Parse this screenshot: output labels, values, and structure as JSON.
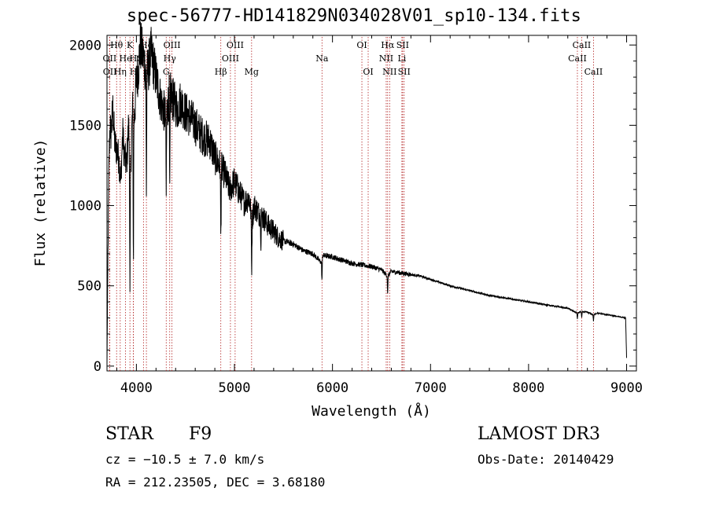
{
  "title": "spec-56777-HD141829N034028V01_sp10-134.fits",
  "chart_data": {
    "type": "line",
    "title": "spec-56777-HD141829N034028V01_sp10-134.fits",
    "xlabel": "Wavelength (Å)",
    "ylabel": "Flux (relative)",
    "xlim": [
      3700,
      9100
    ],
    "ylim": [
      -30,
      2060
    ],
    "xticks": [
      4000,
      5000,
      6000,
      7000,
      8000,
      9000
    ],
    "yticks": [
      0,
      500,
      1000,
      1500,
      2000
    ],
    "series": [
      {
        "name": "flux",
        "x": [
          3700,
          3710,
          3720,
          3730,
          3740,
          3760,
          3780,
          3800,
          3820,
          3840,
          3860,
          3880,
          3900,
          3920,
          3940,
          3960,
          3980,
          4000,
          4020,
          4040,
          4060,
          4080,
          4100,
          4120,
          4150,
          4200,
          4250,
          4300,
          4340,
          4380,
          4420,
          4450,
          4500,
          4550,
          4600,
          4650,
          4700,
          4750,
          4800,
          4850,
          4900,
          4950,
          5000,
          5050,
          5100,
          5150,
          5180,
          5200,
          5250,
          5300,
          5350,
          5400,
          5450,
          5500,
          5600,
          5700,
          5800,
          5893,
          5900,
          6000,
          6100,
          6200,
          6300,
          6400,
          6500,
          6563,
          6600,
          6700,
          6800,
          6900,
          7000,
          7200,
          7400,
          7600,
          7800,
          8000,
          8200,
          8400,
          8498,
          8542,
          8600,
          8662,
          8700,
          8800,
          8900,
          8990,
          9000
        ],
        "y": [
          0,
          700,
          1250,
          1500,
          1450,
          1600,
          1380,
          1350,
          1300,
          1150,
          1450,
          1300,
          1250,
          1500,
          1200,
          1600,
          1550,
          1780,
          1850,
          2000,
          1950,
          1900,
          1800,
          1850,
          1950,
          1800,
          1650,
          1550,
          1700,
          1650,
          1600,
          1650,
          1580,
          1550,
          1500,
          1450,
          1420,
          1400,
          1300,
          1250,
          1200,
          1100,
          1150,
          1080,
          1020,
          1050,
          900,
          1000,
          950,
          920,
          870,
          840,
          800,
          780,
          760,
          720,
          700,
          640,
          690,
          680,
          660,
          640,
          630,
          620,
          600,
          560,
          590,
          580,
          570,
          560,
          540,
          500,
          470,
          440,
          420,
          400,
          380,
          360,
          330,
          340,
          335,
          320,
          330,
          320,
          310,
          300,
          50
        ]
      }
    ],
    "lines": [
      {
        "label": "Hθ",
        "wave": 3798,
        "row": 0
      },
      {
        "label": "OII",
        "wave": 3727,
        "row": 1
      },
      {
        "label": "OII",
        "wave": 3729,
        "row": 2
      },
      {
        "label": "K",
        "wave": 3934,
        "row": 0
      },
      {
        "label": "He",
        "wave": 3889,
        "row": 1
      },
      {
        "label": "Hη",
        "wave": 3835,
        "row": 2
      },
      {
        "label": "Hδ",
        "wave": 4102,
        "row": 0
      },
      {
        "label": "H",
        "wave": 3969,
        "row": 1
      },
      {
        "label": "H",
        "wave": 3970,
        "row": 2
      },
      {
        "label": "SII",
        "wave": 4072,
        "row": 1
      },
      {
        "label": "OIII",
        "wave": 4363,
        "row": 0
      },
      {
        "label": "Hγ",
        "wave": 4340,
        "row": 1
      },
      {
        "label": "G",
        "wave": 4304,
        "row": 2
      },
      {
        "label": "OIII",
        "wave": 5007,
        "row": 0
      },
      {
        "label": "OIII",
        "wave": 4959,
        "row": 1
      },
      {
        "label": "Hβ",
        "wave": 4861,
        "row": 2
      },
      {
        "label": "Mg",
        "wave": 5175,
        "row": 2
      },
      {
        "label": "Na",
        "wave": 5893,
        "row": 1
      },
      {
        "label": "OI",
        "wave": 6300,
        "row": 0
      },
      {
        "label": "OI",
        "wave": 6364,
        "row": 2
      },
      {
        "label": "Hα",
        "wave": 6563,
        "row": 0
      },
      {
        "label": "SII",
        "wave": 6716,
        "row": 0
      },
      {
        "label": "NII",
        "wave": 6548,
        "row": 1
      },
      {
        "label": "Li",
        "wave": 6708,
        "row": 1
      },
      {
        "label": "NII",
        "wave": 6583,
        "row": 2
      },
      {
        "label": "SII",
        "wave": 6731,
        "row": 2
      },
      {
        "label": "CaII",
        "wave": 8542,
        "row": 0
      },
      {
        "label": "CaII",
        "wave": 8498,
        "row": 1
      },
      {
        "label": "CaII",
        "wave": 8662,
        "row": 2
      }
    ]
  },
  "info": {
    "object_class": "STAR",
    "subclass": "F9",
    "survey": "LAMOST DR3",
    "cz": "cz = −10.5 ± 7.0 km/s",
    "obs_date": "Obs-Date: 20140429",
    "coords": "RA = 212.23505, DEC =   3.68180"
  }
}
